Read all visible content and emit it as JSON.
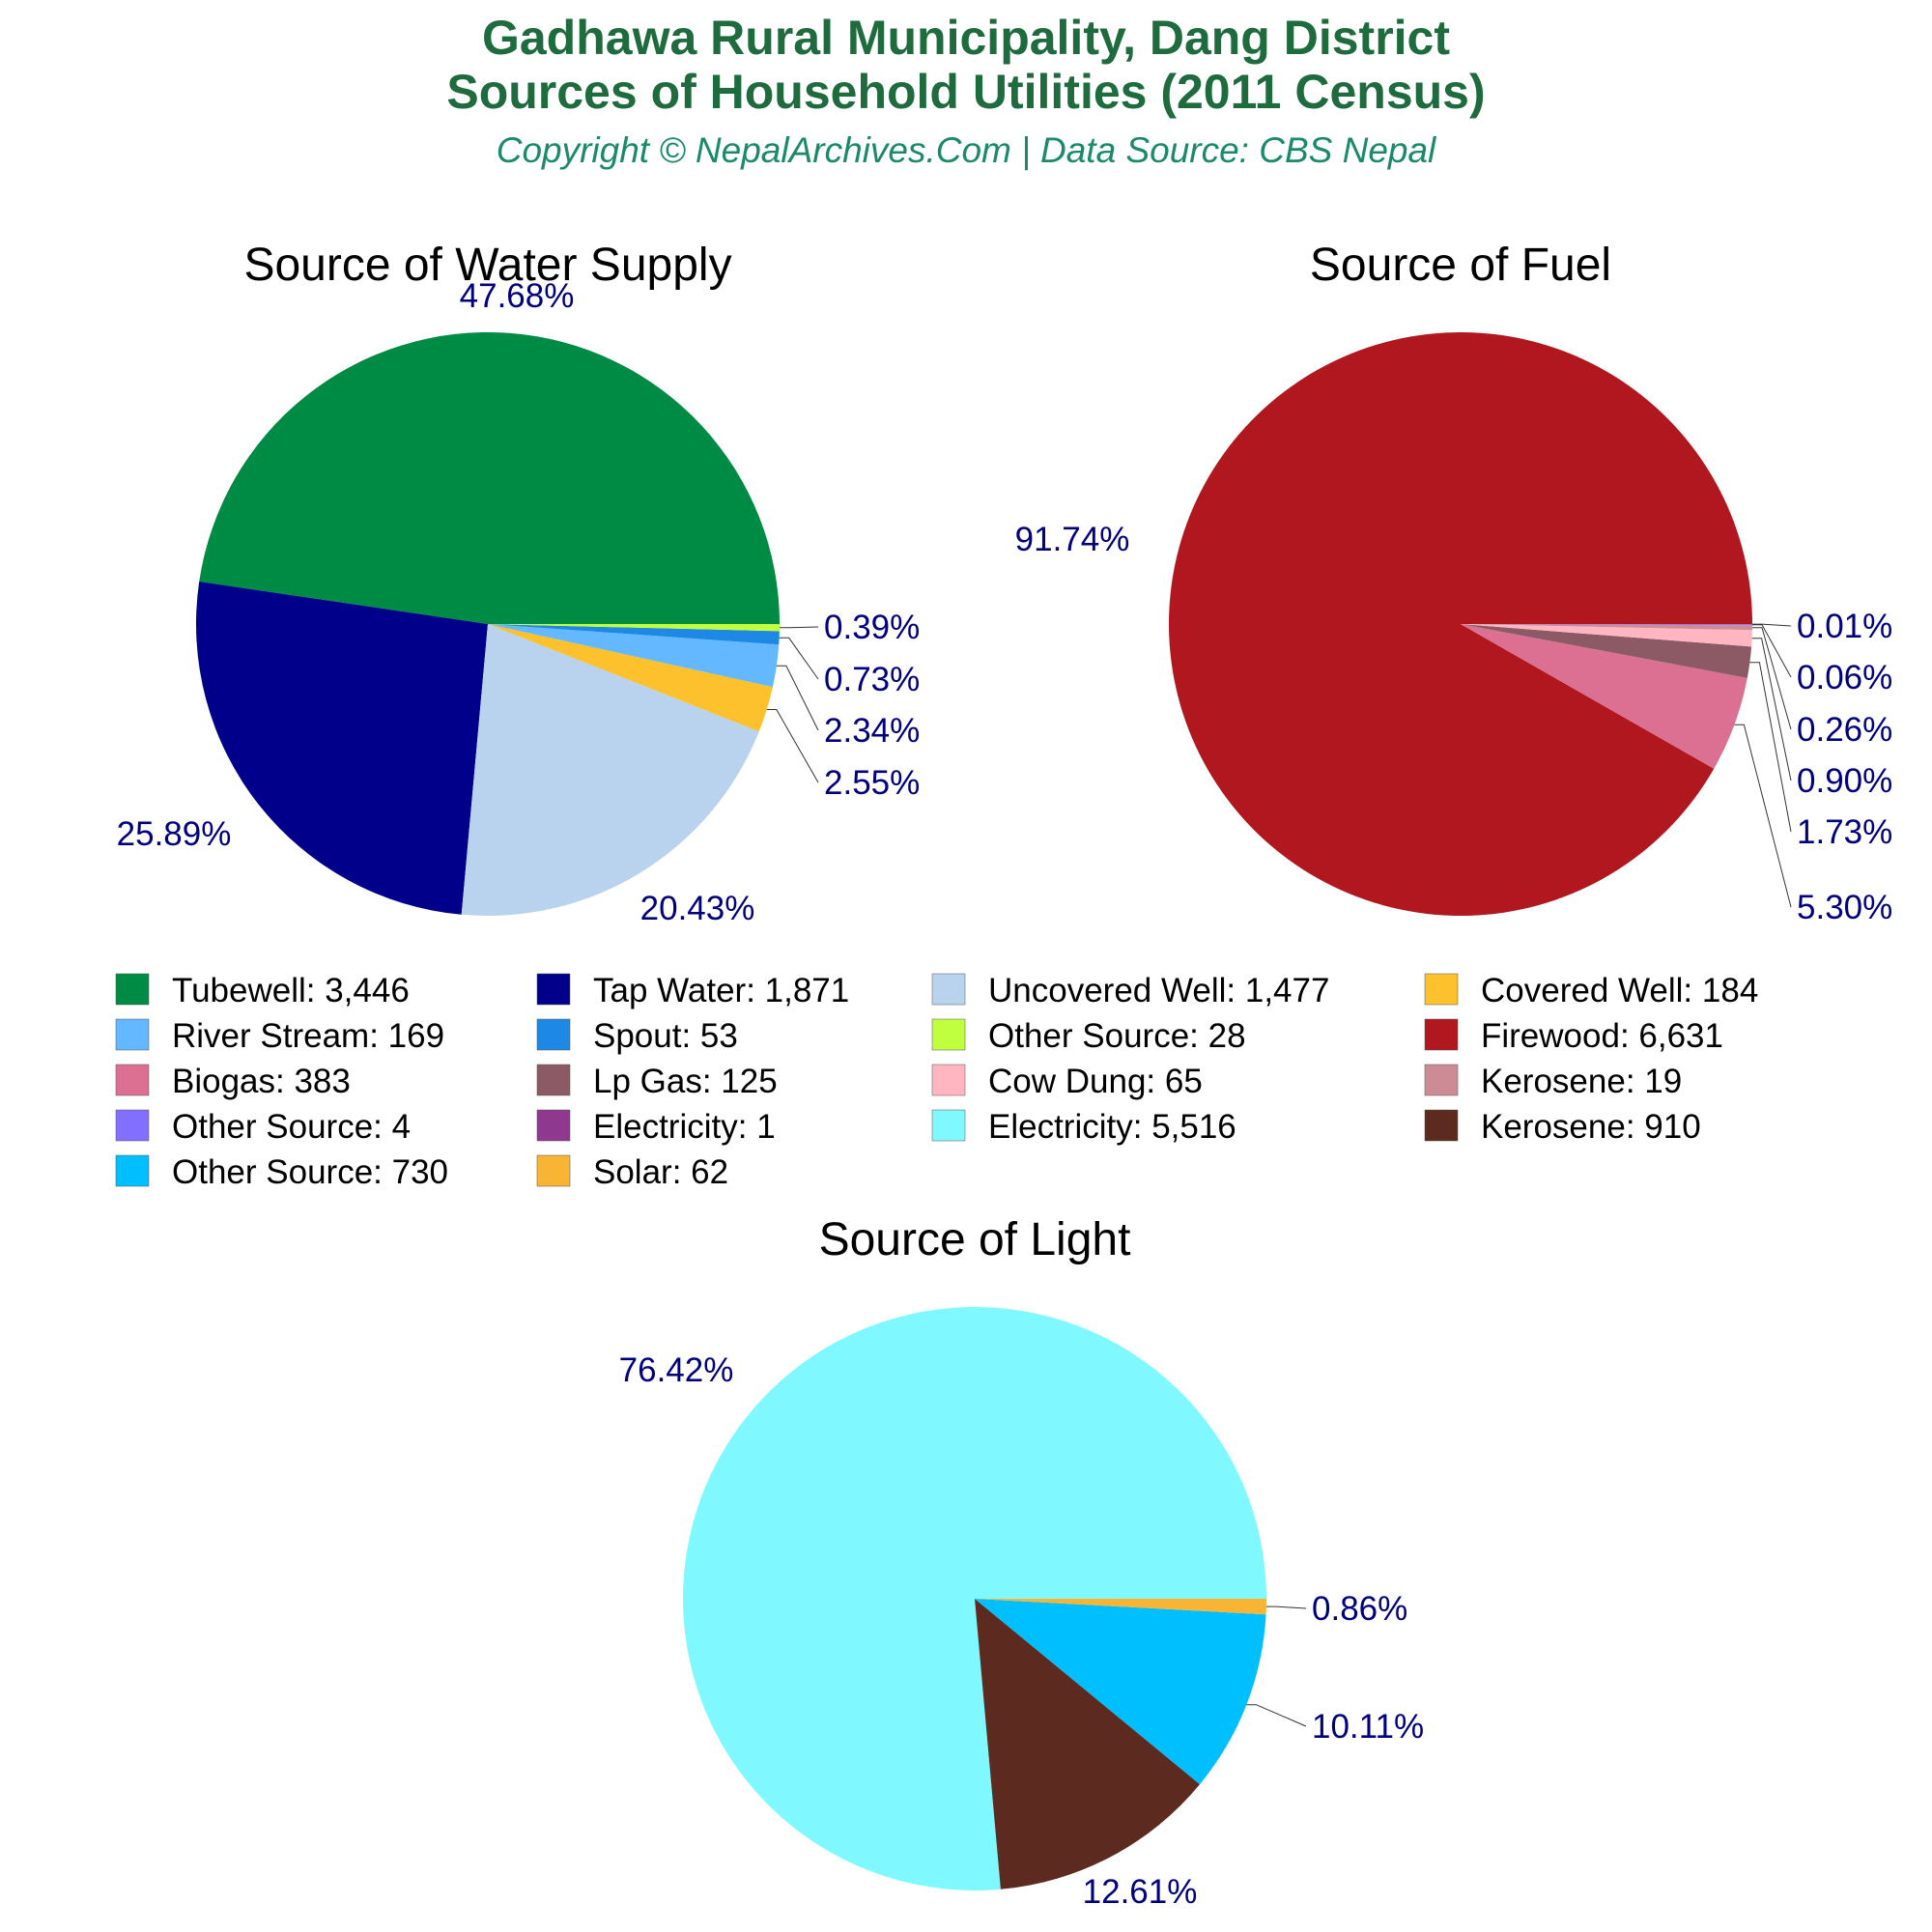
{
  "header": {
    "title_line1": "Gadhawa Rural Municipality, Dang District",
    "title_line2": "Sources of Household Utilities (2011 Census)",
    "subtitle": "Copyright © NepalArchives.Com | Data Source: CBS Nepal"
  },
  "chart_data": [
    {
      "type": "pie",
      "title": "Source of Water Supply",
      "slices": [
        {
          "label": "Tubewell",
          "value": 3446,
          "display": "3,446",
          "pct": "47.68%",
          "color": "#008b45"
        },
        {
          "label": "Tap Water",
          "value": 1871,
          "display": "1,871",
          "pct": "25.89%",
          "color": "#00008b"
        },
        {
          "label": "Uncovered Well",
          "value": 1477,
          "display": "1,477",
          "pct": "20.43%",
          "color": "#b9d3ee"
        },
        {
          "label": "Covered Well",
          "value": 184,
          "display": "184",
          "pct": "2.55%",
          "color": "#fcc12c"
        },
        {
          "label": "River Stream",
          "value": 169,
          "display": "169",
          "pct": "2.34%",
          "color": "#63b8ff"
        },
        {
          "label": "Spout",
          "value": 53,
          "display": "53",
          "pct": "0.73%",
          "color": "#1e88e5"
        },
        {
          "label": "Other Source",
          "value": 28,
          "display": "28",
          "pct": "0.39%",
          "color": "#c0ff3e"
        }
      ]
    },
    {
      "type": "pie",
      "title": "Source of Fuel",
      "slices": [
        {
          "label": "Firewood",
          "value": 6631,
          "display": "6,631",
          "pct": "91.74%",
          "color": "#b0171f"
        },
        {
          "label": "Biogas",
          "value": 383,
          "display": "383",
          "pct": "5.30%",
          "color": "#db7093"
        },
        {
          "label": "Lp Gas",
          "value": 125,
          "display": "125",
          "pct": "1.73%",
          "color": "#8b5a65"
        },
        {
          "label": "Cow Dung",
          "value": 65,
          "display": "65",
          "pct": "0.90%",
          "color": "#ffb6c1"
        },
        {
          "label": "Kerosene",
          "value": 19,
          "display": "19",
          "pct": "0.26%",
          "color": "#cd8c95"
        },
        {
          "label": "Other Source",
          "value": 4,
          "display": "4",
          "pct": "0.06%",
          "color": "#836fff"
        },
        {
          "label": "Electricity",
          "value": 1,
          "display": "1",
          "pct": "0.01%",
          "color": "#8e388e"
        }
      ]
    },
    {
      "type": "pie",
      "title": "Source of Light",
      "slices": [
        {
          "label": "Electricity",
          "value": 5516,
          "display": "5,516",
          "pct": "76.42%",
          "color": "#7ff9ff"
        },
        {
          "label": "Kerosene",
          "value": 910,
          "display": "910",
          "pct": "12.61%",
          "color": "#5c2a1e"
        },
        {
          "label": "Other Source",
          "value": 730,
          "display": "730",
          "pct": "10.11%",
          "color": "#00bfff"
        },
        {
          "label": "Solar",
          "value": 62,
          "display": "62",
          "pct": "0.86%",
          "color": "#f8b535"
        }
      ]
    }
  ]
}
